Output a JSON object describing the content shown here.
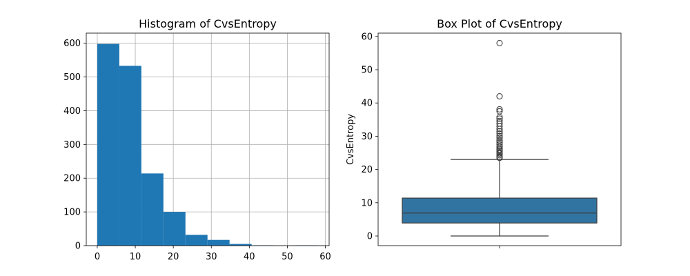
{
  "chart_data": [
    {
      "type": "bar",
      "title": "Histogram of CvsEntropy",
      "xlabel": "",
      "ylabel": "",
      "xlim": [
        -2.9,
        61.0
      ],
      "ylim": [
        0,
        630
      ],
      "grid": true,
      "bar_color": "#1f77b4",
      "grid_color": "#b0b0b0",
      "bins": [
        {
          "x0": 0.0,
          "x1": 5.8,
          "count": 598
        },
        {
          "x0": 5.8,
          "x1": 11.6,
          "count": 533
        },
        {
          "x0": 11.6,
          "x1": 17.4,
          "count": 214
        },
        {
          "x0": 17.4,
          "x1": 23.2,
          "count": 100
        },
        {
          "x0": 23.2,
          "x1": 29.0,
          "count": 32
        },
        {
          "x0": 29.0,
          "x1": 34.8,
          "count": 17
        },
        {
          "x0": 34.8,
          "x1": 40.6,
          "count": 5
        },
        {
          "x0": 40.6,
          "x1": 46.4,
          "count": 1
        },
        {
          "x0": 46.4,
          "x1": 52.2,
          "count": 0
        },
        {
          "x0": 52.2,
          "x1": 58.0,
          "count": 1
        }
      ],
      "xticks": [
        0,
        10,
        20,
        30,
        40,
        50,
        60
      ],
      "yticks": [
        0,
        100,
        200,
        300,
        400,
        500,
        600
      ]
    },
    {
      "type": "box",
      "title": "Box Plot of CvsEntropy",
      "xlabel": "",
      "ylabel": "CvsEntropy",
      "ylim": [
        -2.9,
        61.0
      ],
      "grid": false,
      "box_color": "#3274a1",
      "line_color": "#3d3d3d",
      "stats": {
        "min": 0.0,
        "q1": 3.9,
        "median": 6.9,
        "q3": 11.4,
        "whisker_high": 23.0
      },
      "outliers": [
        23.5,
        23.8,
        24.3,
        24.8,
        25.2,
        25.6,
        26.0,
        26.5,
        27.0,
        27.6,
        28.2,
        28.8,
        29.5,
        30.1,
        30.8,
        31.5,
        32.2,
        33.0,
        33.8,
        34.6,
        35.3,
        35.8,
        37.5,
        38.1,
        42.0,
        58.0
      ],
      "yticks": [
        0,
        10,
        20,
        30,
        40,
        50,
        60
      ]
    }
  ]
}
